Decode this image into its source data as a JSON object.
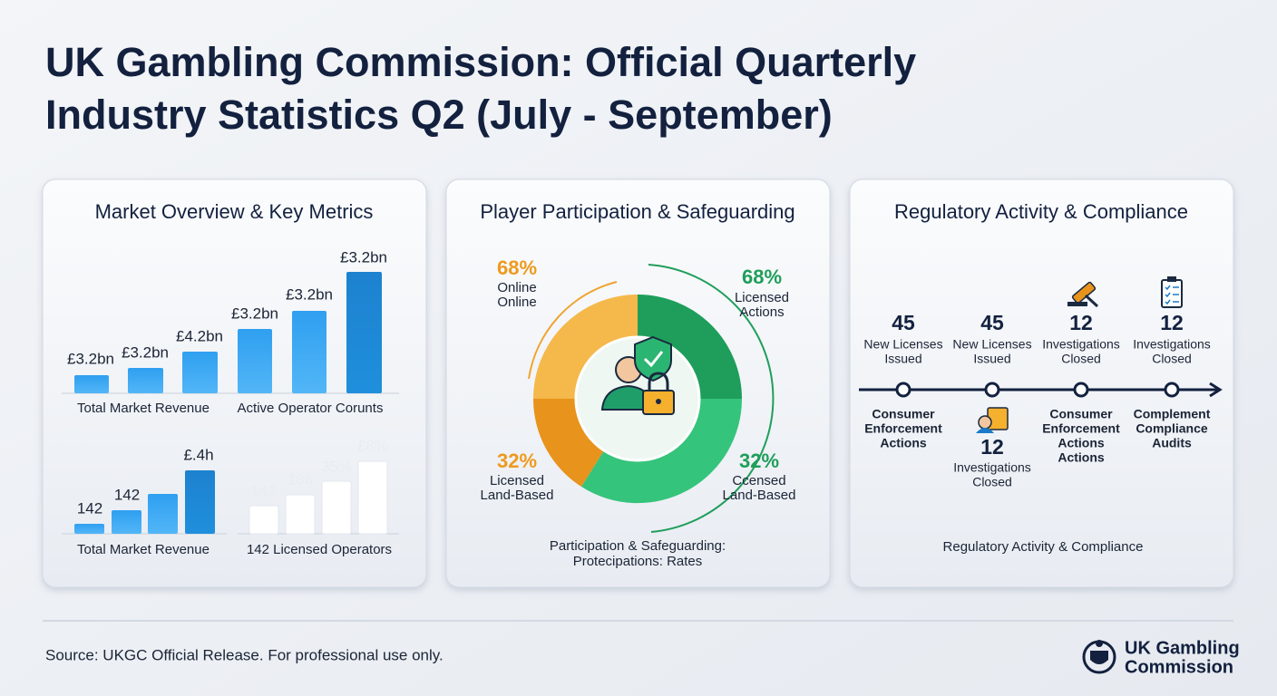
{
  "header": {
    "title": [
      "UK Gambling Commission: Official Quarterly",
      "Industry Statistics Q2 (July - September)"
    ]
  },
  "market_overview": {
    "heading": "Market Overview & Key Metrics",
    "top_labels": [
      "£3.2bn",
      "£3.2bn",
      "£4.2bn",
      "£3.2bn",
      "£3.2bn",
      "£3.2bn"
    ],
    "top_captions": [
      "Total Market Revenue",
      "Active Operator Corunts"
    ],
    "bottom_labels": [
      142,
      142,
      "£.4h",
      142,
      186,
      "35%",
      "£8%"
    ],
    "bottom_captions": [
      "Total Market Revenue",
      "142 Licensed Operators"
    ]
  },
  "participation": {
    "heading": "Player Participation & Safeguarding",
    "segments": [
      {
        "percent": "68%",
        "label": [
          "Online",
          "Online"
        ]
      },
      {
        "percent": "68%",
        "label": [
          "Licensed",
          "Actions"
        ]
      },
      {
        "percent": "32%",
        "label": [
          "Licensed",
          "Land-Based"
        ]
      },
      {
        "percent": "32%",
        "label": [
          "Ccensed",
          "Land-Based"
        ]
      }
    ],
    "caption": [
      "Participation & Safeguarding:",
      "Protecipations: Rates"
    ]
  },
  "regulatory": {
    "heading": "Regulatory Activity & Compliance",
    "stats": [
      {
        "value": 45,
        "label": [
          "New Licenses",
          "Issued"
        ]
      },
      {
        "value": 45,
        "label": [
          "New Licenses",
          "Issued"
        ]
      },
      {
        "value": 12,
        "label": [
          "Investigations",
          "Closed"
        ]
      },
      {
        "value": 12,
        "label": [
          "Investigations",
          "Closed"
        ]
      }
    ],
    "timeline": [
      [
        "Consumer",
        "Enforcement",
        "Actions"
      ],
      [],
      [
        "Consumer",
        "Enforcement",
        "Actions",
        "Actions"
      ],
      [
        "Complement",
        "Compliance",
        "Audits"
      ]
    ],
    "timeline_stat": {
      "value": 12,
      "label": [
        "Investigations",
        "Closed"
      ]
    },
    "caption": "Regulatory Activity & Compliance"
  },
  "footer": {
    "source": "Source: UKGC Official Release. For professional use only.",
    "logo": [
      "UK Gambling",
      "Commission"
    ]
  }
}
